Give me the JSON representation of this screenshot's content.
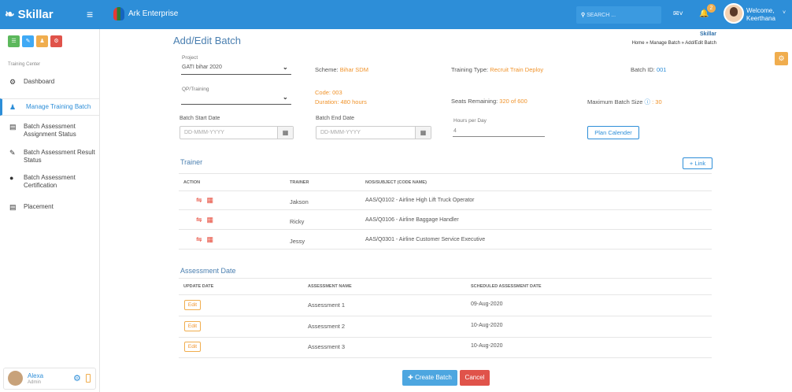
{
  "topbar": {
    "brand": "Skillar",
    "org": "Ark Enterprise",
    "search_placeholder": "SEARCH ...",
    "notification_count": "2",
    "welcome": "Welcome,",
    "user_name": "Keerthana"
  },
  "sidebar": {
    "section_title": "Training Center",
    "items": [
      {
        "label": "Dashboard",
        "icon": "tachometer-icon"
      },
      {
        "label": "Manage Training Batch",
        "icon": "users-icon"
      },
      {
        "label": "Batch Assessment Assignment Status",
        "icon": "clipboard-icon"
      },
      {
        "label": "Batch Assessment Result Status",
        "icon": "pencil-icon"
      },
      {
        "label": "Batch Assessment Certification",
        "icon": "circle-icon"
      },
      {
        "label": "Placement",
        "icon": "list-icon"
      }
    ],
    "quick_colors": [
      "#5cb85c",
      "#3fa9f5",
      "#f0ad4e",
      "#e0534a"
    ],
    "footer": {
      "name": "Alexa",
      "role": "Admin"
    }
  },
  "page": {
    "title": "Add/Edit Batch",
    "crumb_brand": "Skillar",
    "breadcrumb": "Home » Manage Batch » Add/Edit Batch"
  },
  "form": {
    "project_label": "Project",
    "project_value": "GATI bihar 2020",
    "scheme_label": "Scheme:",
    "scheme_value": "Bihar SDM",
    "training_type_label": "Training Type:",
    "training_type_value": "Recruit Train Deploy",
    "batch_id_label": "Batch ID:",
    "batch_id_value": "001",
    "qp_label": "QP/Training",
    "code": "Code: 003",
    "duration": "Duration: 480 hours",
    "seats_label": "Seats Remaining:",
    "seats_value": "320 of 600",
    "max_batch_label": "Maximum Batch Size",
    "max_batch_value": ": 30",
    "start_label": "Batch Start Date",
    "start_placeholder": "DD-MMM-YYYY",
    "end_label": "Batch End Date",
    "end_placeholder": "DD-MMM-YYYY",
    "hours_label": "Hours per Day",
    "hours_value": "4",
    "plan_calendar": "Plan Calender"
  },
  "trainer": {
    "title": "Trainer",
    "link_button": "Link",
    "headers": [
      "ACTION",
      "TRAINER",
      "NOS/SUBJECT (CODE NAME)"
    ],
    "rows": [
      {
        "trainer": "Jakson",
        "subject": "AAS/Q0102 - Airline High Lift Truck Operator"
      },
      {
        "trainer": "Ricky",
        "subject": "AAS/Q0106 - Airline Baggage Handler"
      },
      {
        "trainer": "Jessy",
        "subject": "AAS/Q0301 - Airline Customer Service Executive"
      }
    ]
  },
  "assessment": {
    "title": "Assessment Date",
    "headers": [
      "UPDATE DATE",
      "ASSESSMENT NAME",
      "SCHEDULED ASSESSMENT DATE"
    ],
    "rows": [
      {
        "edit": "Edit",
        "name": "Assessment 1",
        "date": "09-Aug-2020"
      },
      {
        "edit": "Edit",
        "name": "Assessment 2",
        "date": "10-Aug-2020"
      },
      {
        "edit": "Edit",
        "name": "Assessment 3",
        "date": "10-Aug-2020"
      }
    ]
  },
  "actions": {
    "create": "Create Batch",
    "cancel": "Cancel"
  }
}
